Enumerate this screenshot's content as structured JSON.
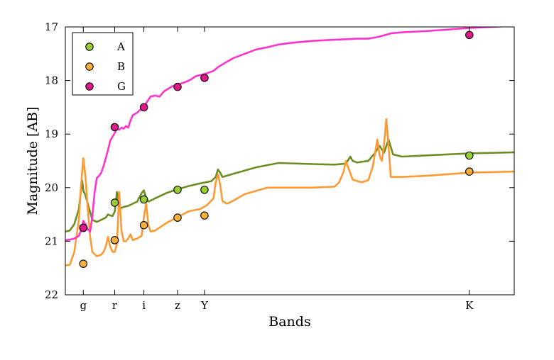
{
  "chart_data": {
    "type": "line",
    "xlabel": "Bands",
    "ylabel": "Magnitude [AB]",
    "ylim": [
      22,
      17
    ],
    "y_inverted": true,
    "yticks": [
      17,
      18,
      19,
      20,
      21,
      22
    ],
    "grid": false,
    "legend_position": "top-left",
    "bands": [
      {
        "label": "g",
        "x": 0.48
      },
      {
        "label": "r",
        "x": 0.62
      },
      {
        "label": "i",
        "x": 0.75
      },
      {
        "label": "z",
        "x": 0.9
      },
      {
        "label": "Y",
        "x": 1.02
      },
      {
        "label": "K",
        "x": 2.2
      }
    ],
    "xlim": [
      0.4,
      2.4
    ],
    "series": [
      {
        "name": "A",
        "color": "#6b8e23",
        "marker_color": "#9acd32",
        "points": [
          20.75,
          20.28,
          20.22,
          20.04,
          20.04,
          19.4
        ],
        "curve": [
          [
            0.4,
            20.82
          ],
          [
            0.42,
            20.8
          ],
          [
            0.44,
            20.68
          ],
          [
            0.46,
            20.4
          ],
          [
            0.47,
            20.05
          ],
          [
            0.475,
            19.87
          ],
          [
            0.48,
            20.05
          ],
          [
            0.49,
            20.15
          ],
          [
            0.5,
            20.3
          ],
          [
            0.52,
            20.6
          ],
          [
            0.54,
            20.64
          ],
          [
            0.56,
            20.6
          ],
          [
            0.58,
            20.56
          ],
          [
            0.59,
            20.5
          ],
          [
            0.6,
            20.52
          ],
          [
            0.61,
            20.53
          ],
          [
            0.62,
            20.45
          ],
          [
            0.63,
            20.08
          ],
          [
            0.64,
            20.34
          ],
          [
            0.65,
            20.38
          ],
          [
            0.66,
            20.36
          ],
          [
            0.68,
            20.34
          ],
          [
            0.7,
            20.3
          ],
          [
            0.72,
            20.26
          ],
          [
            0.74,
            20.1
          ],
          [
            0.75,
            20.05
          ],
          [
            0.76,
            20.2
          ],
          [
            0.77,
            20.26
          ],
          [
            0.8,
            20.2
          ],
          [
            0.85,
            20.1
          ],
          [
            0.9,
            20.03
          ],
          [
            0.95,
            19.97
          ],
          [
            1.0,
            19.92
          ],
          [
            1.05,
            19.88
          ],
          [
            1.07,
            19.8
          ],
          [
            1.08,
            19.66
          ],
          [
            1.09,
            19.72
          ],
          [
            1.1,
            19.8
          ],
          [
            1.15,
            19.74
          ],
          [
            1.25,
            19.62
          ],
          [
            1.35,
            19.54
          ],
          [
            1.5,
            19.56
          ],
          [
            1.6,
            19.57
          ],
          [
            1.65,
            19.55
          ],
          [
            1.67,
            19.42
          ],
          [
            1.68,
            19.5
          ],
          [
            1.7,
            19.53
          ],
          [
            1.75,
            19.5
          ],
          [
            1.78,
            19.35
          ],
          [
            1.8,
            19.22
          ],
          [
            1.82,
            19.35
          ],
          [
            1.84,
            19.1
          ],
          [
            1.86,
            19.38
          ],
          [
            1.9,
            19.42
          ],
          [
            2.0,
            19.4
          ],
          [
            2.1,
            19.38
          ],
          [
            2.2,
            19.36
          ],
          [
            2.3,
            19.35
          ],
          [
            2.4,
            19.34
          ]
        ]
      },
      {
        "name": "B",
        "color": "#ff9933",
        "marker_color": "#f5b13a",
        "points": [
          21.42,
          20.98,
          20.7,
          20.56,
          20.52,
          19.7
        ],
        "curve": [
          [
            0.4,
            21.45
          ],
          [
            0.42,
            21.44
          ],
          [
            0.44,
            21.2
          ],
          [
            0.46,
            20.6
          ],
          [
            0.47,
            19.95
          ],
          [
            0.48,
            19.45
          ],
          [
            0.49,
            19.8
          ],
          [
            0.5,
            20.4
          ],
          [
            0.51,
            20.9
          ],
          [
            0.52,
            21.2
          ],
          [
            0.54,
            21.28
          ],
          [
            0.56,
            21.25
          ],
          [
            0.57,
            21.2
          ],
          [
            0.58,
            21.1
          ],
          [
            0.59,
            20.92
          ],
          [
            0.6,
            21.1
          ],
          [
            0.61,
            21.2
          ],
          [
            0.62,
            21.2
          ],
          [
            0.63,
            21.05
          ],
          [
            0.64,
            20.08
          ],
          [
            0.65,
            20.8
          ],
          [
            0.66,
            21.0
          ],
          [
            0.67,
            21.0
          ],
          [
            0.68,
            20.95
          ],
          [
            0.69,
            20.87
          ],
          [
            0.7,
            20.98
          ],
          [
            0.72,
            20.95
          ],
          [
            0.74,
            20.9
          ],
          [
            0.75,
            20.55
          ],
          [
            0.76,
            20.3
          ],
          [
            0.77,
            20.7
          ],
          [
            0.78,
            20.82
          ],
          [
            0.8,
            20.8
          ],
          [
            0.85,
            20.66
          ],
          [
            0.9,
            20.55
          ],
          [
            0.95,
            20.44
          ],
          [
            1.0,
            20.4
          ],
          [
            1.03,
            20.33
          ],
          [
            1.06,
            20.2
          ],
          [
            1.07,
            19.9
          ],
          [
            1.08,
            19.75
          ],
          [
            1.09,
            19.95
          ],
          [
            1.1,
            20.25
          ],
          [
            1.12,
            20.3
          ],
          [
            1.15,
            20.24
          ],
          [
            1.2,
            20.12
          ],
          [
            1.3,
            20.0
          ],
          [
            1.4,
            20.0
          ],
          [
            1.5,
            20.0
          ],
          [
            1.6,
            19.98
          ],
          [
            1.62,
            19.9
          ],
          [
            1.64,
            19.7
          ],
          [
            1.65,
            19.5
          ],
          [
            1.66,
            19.62
          ],
          [
            1.68,
            19.85
          ],
          [
            1.72,
            19.9
          ],
          [
            1.75,
            19.86
          ],
          [
            1.77,
            19.6
          ],
          [
            1.79,
            19.1
          ],
          [
            1.8,
            19.4
          ],
          [
            1.81,
            19.5
          ],
          [
            1.82,
            19.2
          ],
          [
            1.83,
            18.72
          ],
          [
            1.84,
            19.2
          ],
          [
            1.85,
            19.8
          ],
          [
            1.9,
            19.8
          ],
          [
            2.0,
            19.78
          ],
          [
            2.1,
            19.75
          ],
          [
            2.2,
            19.72
          ],
          [
            2.3,
            19.71
          ],
          [
            2.4,
            19.7
          ]
        ]
      },
      {
        "name": "G",
        "color": "#ff33cc",
        "marker_color": "#e0188c",
        "points": [
          20.75,
          18.87,
          18.5,
          18.12,
          17.95,
          17.15
        ],
        "curve": [
          [
            0.4,
            20.98
          ],
          [
            0.42,
            20.97
          ],
          [
            0.44,
            20.95
          ],
          [
            0.46,
            20.9
          ],
          [
            0.47,
            20.8
          ],
          [
            0.48,
            20.62
          ],
          [
            0.49,
            20.68
          ],
          [
            0.5,
            20.78
          ],
          [
            0.51,
            20.82
          ],
          [
            0.52,
            20.55
          ],
          [
            0.53,
            20.1
          ],
          [
            0.54,
            19.82
          ],
          [
            0.55,
            19.78
          ],
          [
            0.56,
            19.72
          ],
          [
            0.57,
            19.6
          ],
          [
            0.58,
            19.45
          ],
          [
            0.59,
            19.3
          ],
          [
            0.6,
            19.12
          ],
          [
            0.61,
            19.05
          ],
          [
            0.62,
            18.98
          ],
          [
            0.63,
            18.9
          ],
          [
            0.64,
            18.92
          ],
          [
            0.65,
            18.88
          ],
          [
            0.66,
            18.9
          ],
          [
            0.67,
            18.85
          ],
          [
            0.68,
            18.88
          ],
          [
            0.69,
            18.75
          ],
          [
            0.7,
            18.65
          ],
          [
            0.72,
            18.6
          ],
          [
            0.74,
            18.52
          ],
          [
            0.75,
            18.5
          ],
          [
            0.76,
            18.42
          ],
          [
            0.78,
            18.3
          ],
          [
            0.8,
            18.28
          ],
          [
            0.82,
            18.3
          ],
          [
            0.84,
            18.2
          ],
          [
            0.86,
            18.15
          ],
          [
            0.88,
            18.1
          ],
          [
            0.9,
            18.08
          ],
          [
            0.92,
            18.05
          ],
          [
            0.94,
            18.02
          ],
          [
            0.96,
            17.98
          ],
          [
            0.98,
            17.92
          ],
          [
            1.0,
            17.9
          ],
          [
            1.02,
            17.88
          ],
          [
            1.04,
            17.85
          ],
          [
            1.06,
            17.82
          ],
          [
            1.08,
            17.75
          ],
          [
            1.1,
            17.7
          ],
          [
            1.12,
            17.65
          ],
          [
            1.15,
            17.58
          ],
          [
            1.2,
            17.5
          ],
          [
            1.25,
            17.42
          ],
          [
            1.3,
            17.38
          ],
          [
            1.35,
            17.33
          ],
          [
            1.4,
            17.3
          ],
          [
            1.5,
            17.26
          ],
          [
            1.6,
            17.24
          ],
          [
            1.7,
            17.22
          ],
          [
            1.75,
            17.22
          ],
          [
            1.8,
            17.18
          ],
          [
            1.85,
            17.12
          ],
          [
            1.9,
            17.1
          ],
          [
            2.0,
            17.08
          ],
          [
            2.1,
            17.05
          ],
          [
            2.2,
            17.02
          ],
          [
            2.3,
            17.0
          ],
          [
            2.4,
            16.98
          ]
        ]
      }
    ]
  }
}
